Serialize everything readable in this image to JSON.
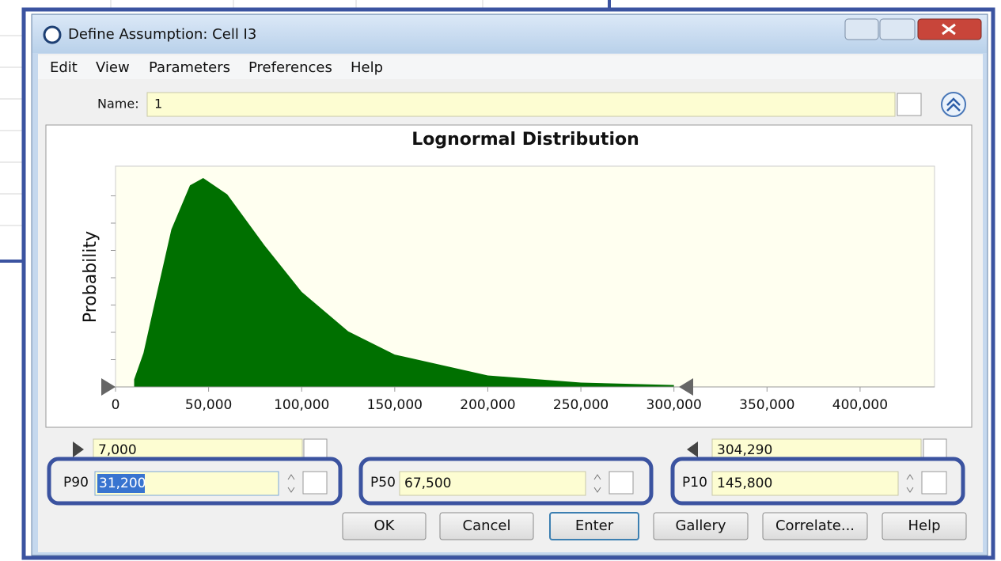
{
  "window": {
    "title": "Define Assumption: Cell I3"
  },
  "menu": [
    "Edit",
    "View",
    "Parameters",
    "Preferences",
    "Help"
  ],
  "name_field": {
    "label": "Name:",
    "value": "1"
  },
  "chart_data": {
    "type": "area",
    "title": "Lognormal Distribution",
    "y_label": "Probability",
    "x": [
      10000,
      15000,
      20000,
      30000,
      40000,
      47100,
      60000,
      80000,
      100000,
      125000,
      150000,
      200000,
      250000,
      300000
    ],
    "values": [
      0.036,
      0.162,
      0.361,
      0.754,
      0.965,
      1,
      0.922,
      0.678,
      0.455,
      0.266,
      0.155,
      0.055,
      0.021,
      0.009
    ],
    "color": "#007000",
    "xlim": [
      0,
      440000
    ],
    "xticks": [
      0,
      {
        "value": 50000,
        "label": "50,000"
      },
      {
        "value": 100000,
        "label": "100,000"
      },
      {
        "value": 150000,
        "label": "150,000"
      },
      {
        "value": 200000,
        "label": "200,000"
      },
      {
        "value": 250000,
        "label": "250,000"
      },
      {
        "value": 300000,
        "label": "300,000"
      },
      {
        "value": 350000,
        "label": "350,000"
      },
      {
        "value": 400000,
        "label": "400,000"
      }
    ]
  },
  "bounds": {
    "min": "7,000",
    "max": "304,290"
  },
  "percentiles": [
    {
      "label": "P90",
      "value": "31,200"
    },
    {
      "label": "P50",
      "value": "67,500"
    },
    {
      "label": "P10",
      "value": "145,800"
    }
  ],
  "buttons": [
    "OK",
    "Cancel",
    "Enter",
    "Gallery",
    "Correlate...",
    "Help"
  ]
}
